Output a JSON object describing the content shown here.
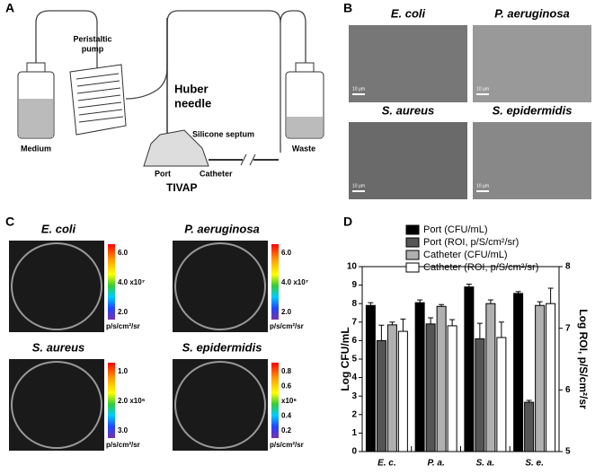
{
  "figure": {
    "panel_labels": [
      "A",
      "B",
      "C",
      "D"
    ],
    "diagram": {
      "pump": [
        "Peristaltic",
        "pump"
      ],
      "needle": [
        "Huber",
        "needle"
      ],
      "septum": "Silicone septum",
      "medium": "Medium",
      "port": "Port",
      "catheter": "Catheter",
      "waste": "Waste",
      "tivap": "TIVAP"
    },
    "sem": {
      "titles": [
        "E. coli",
        "P. aeruginosa",
        "S. aureus",
        "S. epidermidis"
      ],
      "scale_bars": [
        "10 µm",
        "10 µm",
        "10 µm",
        "10 µm"
      ]
    },
    "imaging": [
      {
        "title": "E. coli",
        "ticks": [
          "6.0",
          "4.0 x10⁷",
          "2.0"
        ],
        "unit": "p/s/cm²/sr"
      },
      {
        "title": "P. aeruginosa",
        "ticks": [
          "6.0",
          "4.0 x10⁷",
          "2.0"
        ],
        "unit": "p/s/cm²/sr"
      },
      {
        "title": "S. aureus",
        "ticks": [
          "1.0",
          "2.0 x10⁶",
          "3.0"
        ],
        "unit": "p/s/cm²/sr"
      },
      {
        "title": "S. epidermidis",
        "ticks": [
          "0.8",
          "0.6",
          "x10⁶",
          "0.4",
          "0.2"
        ],
        "unit": "p/s/cm²/sr"
      }
    ]
  },
  "chart_data": {
    "type": "bar",
    "categories": [
      "E. c.",
      "P. a.",
      "S. a.",
      "S. e."
    ],
    "ylabel": "Log CFU/mL",
    "y2label": "Log ROI, p/S/cm²/sr",
    "ylim": [
      0,
      10
    ],
    "yticks": [
      0,
      1,
      2,
      3,
      4,
      5,
      6,
      7,
      8,
      9,
      10
    ],
    "y2lim": [
      5,
      8
    ],
    "y2ticks": [
      5,
      6,
      7,
      8
    ],
    "series": [
      {
        "name": "Port (CFU/mL)",
        "color": "#000000",
        "values": [
          7.9,
          8.05,
          8.9,
          8.55
        ],
        "errors": [
          0.15,
          0.15,
          0.15,
          0.1
        ]
      },
      {
        "name": "Port (ROI, p/S/cm²/sr)",
        "color": "#555555",
        "axis": "y2",
        "values": [
          6.8,
          7.07,
          6.83,
          5.8
        ],
        "errors": [
          0.25,
          0.1,
          0.25,
          0.03
        ]
      },
      {
        "name": "Catheter (CFU/mL)",
        "color": "#b0b0b0",
        "values": [
          6.85,
          7.85,
          8.0,
          7.9
        ],
        "errors": [
          0.15,
          0.1,
          0.2,
          0.2
        ]
      },
      {
        "name": "Catheter (ROI, p/S/cm²/sr)",
        "color": "#ffffff",
        "axis": "y2",
        "values": [
          6.95,
          7.04,
          6.85,
          7.4
        ],
        "errors": [
          0.2,
          0.1,
          0.25,
          0.25
        ]
      }
    ]
  }
}
